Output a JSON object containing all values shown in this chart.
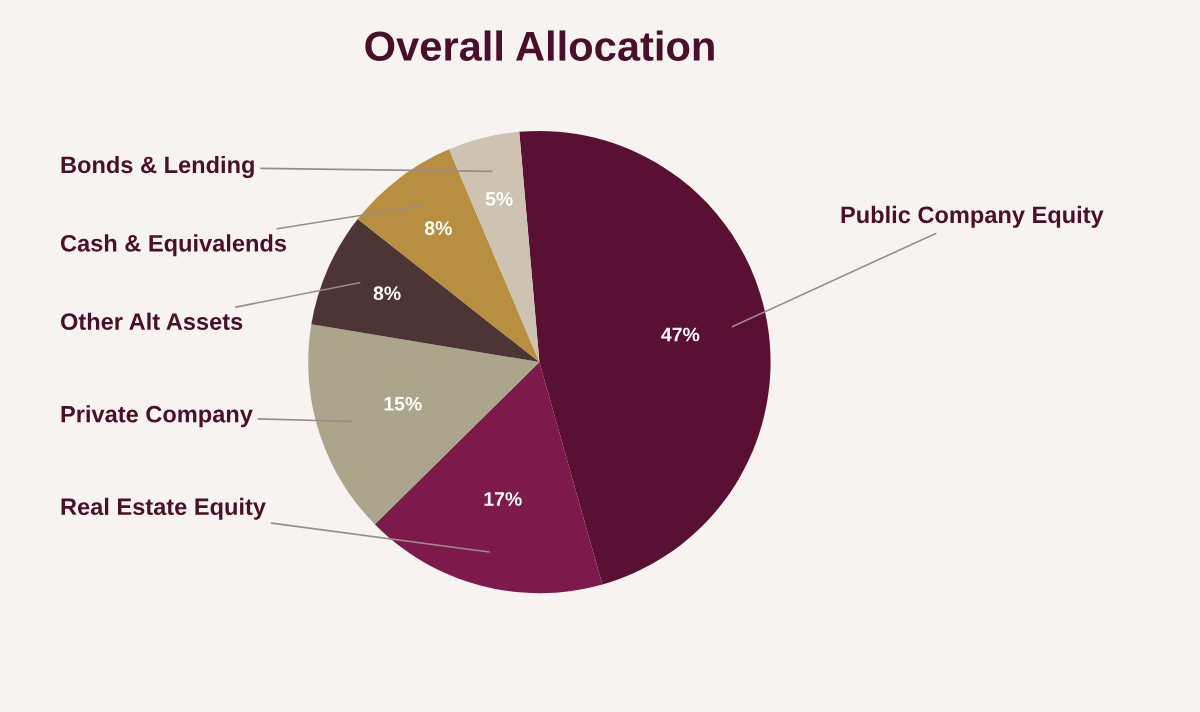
{
  "chart_data": {
    "type": "pie",
    "title": "Overall Allocation",
    "categories": [
      "Public Company Equity",
      "Real Estate Equity",
      "Private Company",
      "Other Alt Assets",
      "Cash & Equivalends",
      "Bonds & Lending"
    ],
    "values": [
      47,
      17,
      15,
      8,
      8,
      5
    ],
    "value_labels": [
      "47%",
      "17%",
      "15%",
      "8%",
      "8%",
      "5%"
    ],
    "colors": [
      "#5a1033",
      "#7e1a4b",
      "#aaa58b",
      "#4e3535",
      "#b88f40",
      "#cec2b3"
    ],
    "legend": false
  }
}
